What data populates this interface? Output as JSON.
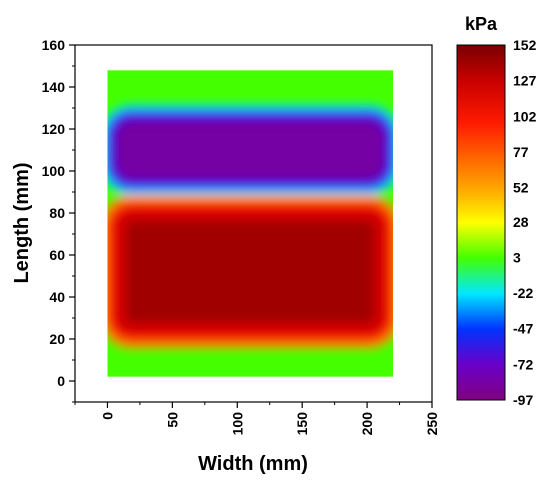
{
  "chart_data": {
    "type": "heatmap",
    "xlabel": "Width (mm)",
    "ylabel": "Length (mm)",
    "xlim": [
      -25,
      250
    ],
    "ylim": [
      -10,
      160
    ],
    "xticks": [
      0,
      50,
      100,
      150,
      200,
      250
    ],
    "yticks": [
      0,
      20,
      40,
      60,
      80,
      100,
      120,
      140,
      160
    ],
    "field_extent": {
      "x": [
        0,
        220
      ],
      "y": [
        2,
        148
      ]
    },
    "colorbar": {
      "unit": "kPa",
      "min": -97,
      "max": 152,
      "ticks": [
        152,
        127,
        102,
        77,
        52,
        28,
        3,
        -22,
        -47,
        -72,
        -97
      ],
      "colors": [
        "#7a0000",
        "#c80000",
        "#ff1a00",
        "#ff6600",
        "#ffb300",
        "#ffff00",
        "#44ff00",
        "#00e8ff",
        "#0033ff",
        "#6a00c8",
        "#800080"
      ]
    },
    "regions": [
      {
        "label": "background",
        "value": 3
      },
      {
        "label": "suction band",
        "x": [
          5,
          215
        ],
        "y": [
          95,
          125
        ],
        "value": -85
      },
      {
        "label": "pressure band",
        "x": [
          5,
          215
        ],
        "y": [
          22,
          82
        ],
        "value": 140
      }
    ],
    "grid": false
  }
}
